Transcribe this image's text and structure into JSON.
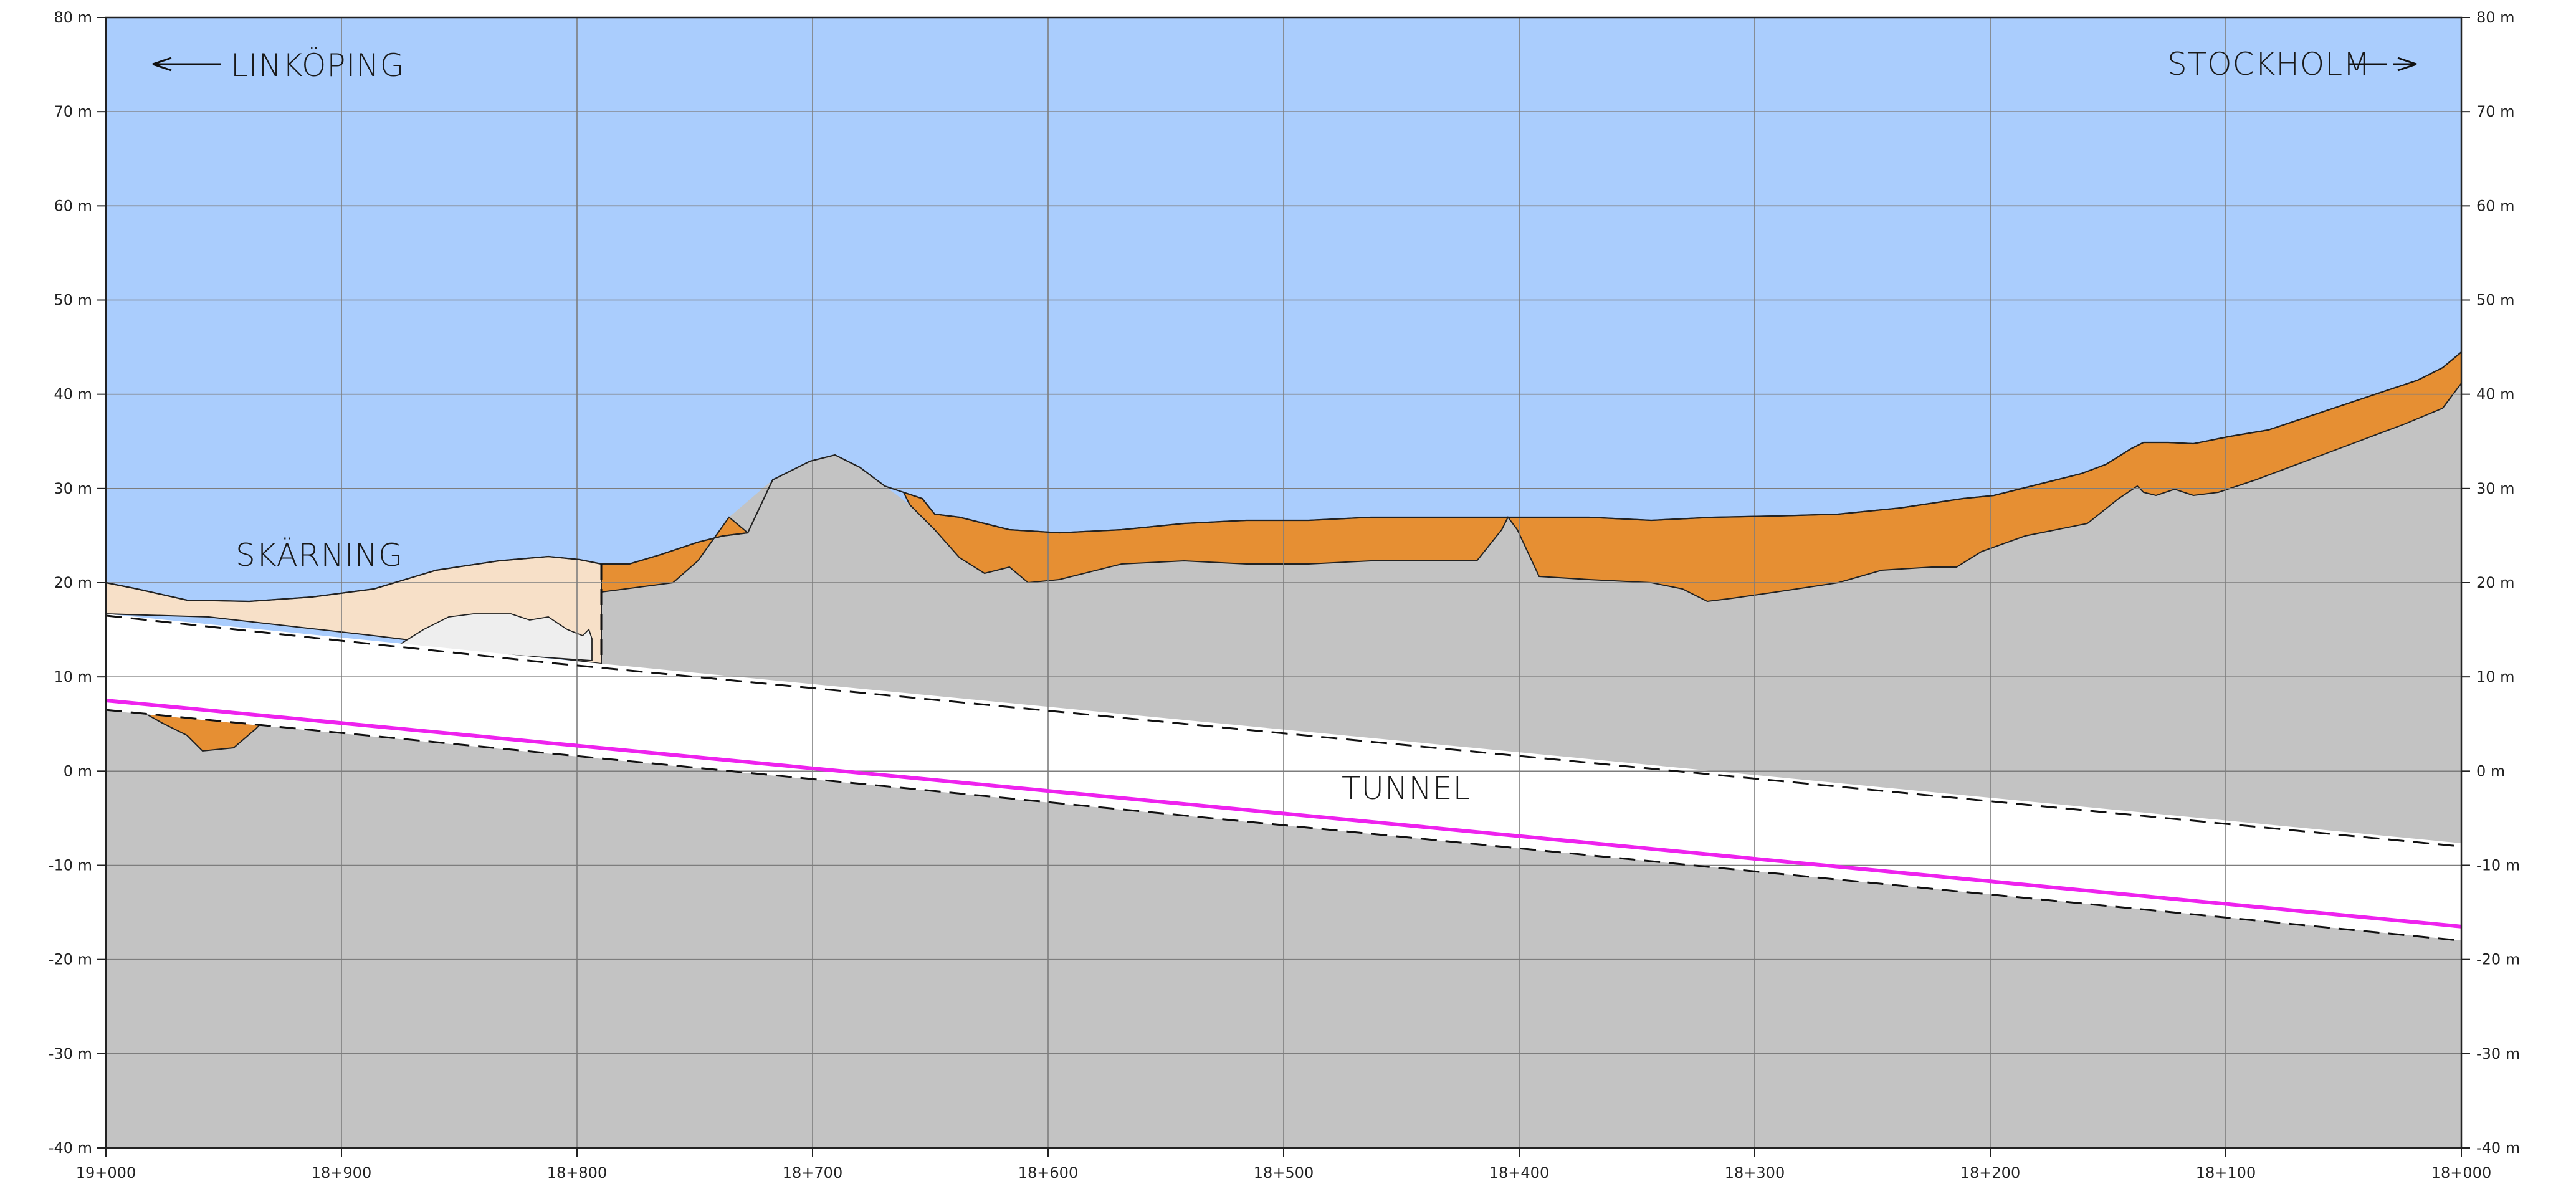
{
  "directions": {
    "left": "LINKÖPING",
    "right": "STOCKHOLM"
  },
  "labels": {
    "cut": "SKÄRNING",
    "tunnel": "TUNNEL"
  },
  "axis": {
    "y_ticks": [
      "80 m",
      "70 m",
      "60 m",
      "50 m",
      "40 m",
      "30 m",
      "20 m",
      "10 m",
      "0 m",
      "-10 m",
      "-20 m",
      "-30 m",
      "-40 m"
    ],
    "x_ticks": [
      "19+000",
      "18+900",
      "18+800",
      "18+700",
      "18+600",
      "18+500",
      "18+400",
      "18+300",
      "18+200",
      "18+100",
      "18+000"
    ]
  },
  "colors": {
    "sky": "#aacdfd",
    "rock": "#c3c3c3",
    "soil": "#e68f33",
    "fill": "#f7e0c8",
    "fill_light": "#eeeeee",
    "tunnel": "#ffffff",
    "grade_line": "#ee22ee"
  },
  "chart_data": {
    "type": "line",
    "x_unit": "chainage (m)",
    "y_unit": "elevation (m)",
    "xlim": [
      19000,
      18000
    ],
    "ylim": [
      -40,
      80
    ],
    "grid": true,
    "series": [
      {
        "x": [
          19000,
          18000
        ],
        "y": [
          7.5,
          -16.5
        ]
      },
      {
        "x": [
          19000,
          18812,
          18000
        ],
        "y": [
          16.5,
          11.5,
          -8
        ]
      },
      {
        "x": [
          19000,
          18000
        ],
        "y": [
          6.5,
          -18
        ]
      },
      {
        "x": [
          19000,
          18960,
          18900,
          18850,
          18812,
          18790,
          18760,
          18720,
          18690,
          18660,
          18620,
          18560,
          18500,
          18450,
          18420,
          18400,
          18350,
          18300,
          18250,
          18200,
          18150,
          18100,
          18050,
          18000
        ],
        "y": [
          19.5,
          18,
          18.5,
          21,
          22,
          21.5,
          24,
          29,
          32.5,
          30,
          26,
          25.5,
          26,
          26.5,
          26.5,
          26.5,
          26.5,
          26.5,
          27.5,
          29,
          31,
          35,
          38.5,
          44.5
        ]
      },
      {
        "x": [
          18812,
          18780,
          18760,
          18735,
          18715,
          18700,
          18680,
          18660,
          18640,
          18620,
          18600,
          18580,
          18560,
          18500,
          18450,
          18400,
          18380,
          18350,
          18300,
          18270,
          18250,
          18200,
          18170,
          18150,
          18120,
          18100,
          18050,
          18000
        ],
        "y": [
          19,
          19.5,
          25,
          31,
          33,
          32.5,
          30,
          25,
          22,
          19.5,
          19.5,
          20.5,
          21.5,
          21.5,
          22,
          26.5,
          20,
          20,
          19,
          18,
          19,
          20,
          23,
          26,
          30,
          29,
          35,
          41
        ]
      }
    ]
  }
}
